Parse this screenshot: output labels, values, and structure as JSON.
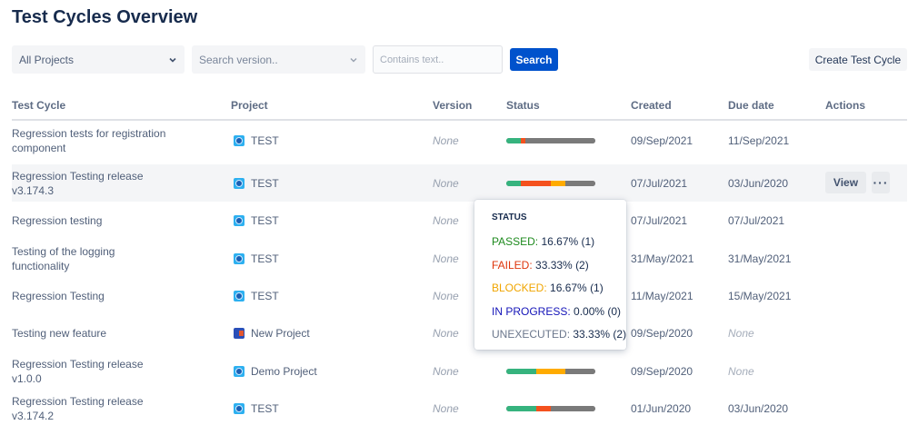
{
  "page": {
    "title": "Test Cycles Overview"
  },
  "filters": {
    "project_select": "All Projects",
    "version_select_placeholder": "Search version..",
    "text_placeholder": "Contains text..",
    "search_label": "Search",
    "create_label": "Create Test Cycle"
  },
  "table": {
    "headers": {
      "test_cycle": "Test Cycle",
      "project": "Project",
      "version": "Version",
      "status": "Status",
      "created": "Created",
      "due_date": "Due date",
      "actions": "Actions"
    },
    "rows": [
      {
        "name": "Regression tests for registration component",
        "project": "TEST",
        "project_icon": "blue",
        "version": "None",
        "status": [
          {
            "label": "PASSED",
            "percent": 16.67,
            "color": "#36b37e"
          },
          {
            "label": "FAILED",
            "percent": 5,
            "color": "#f4511e"
          },
          {
            "label": "UNEXECUTED",
            "percent": 78.33,
            "color": "#7a7a7a"
          }
        ],
        "created": "09/Sep/2021",
        "due": "11/Sep/2021",
        "due_none": false
      },
      {
        "name": "Regression Testing release v3.174.3",
        "project": "TEST",
        "project_icon": "blue",
        "version": "None",
        "status": [
          {
            "label": "PASSED",
            "percent": 16.67,
            "color": "#36b37e"
          },
          {
            "label": "FAILED",
            "percent": 33.33,
            "color": "#f4511e"
          },
          {
            "label": "BLOCKED",
            "percent": 16.67,
            "color": "#ffab00"
          },
          {
            "label": "UNEXECUTED",
            "percent": 33.33,
            "color": "#7a7a7a"
          }
        ],
        "created": "07/Jul/2021",
        "due": "03/Jun/2020",
        "due_none": false,
        "hover": true,
        "view_label": "View",
        "more_label": "···"
      },
      {
        "name": "Regression testing",
        "project": "TEST",
        "project_icon": "blue",
        "version": "None",
        "status": [],
        "created": "07/Jul/2021",
        "due": "07/Jul/2021",
        "due_none": false
      },
      {
        "name": "Testing of the logging functionality",
        "project": "TEST",
        "project_icon": "blue",
        "version": "None",
        "status": [],
        "created": "31/May/2021",
        "due": "31/May/2021",
        "due_none": false
      },
      {
        "name": "Regression Testing",
        "project": "TEST",
        "project_icon": "blue",
        "version": "None",
        "status": [],
        "created": "11/May/2021",
        "due": "15/May/2021",
        "due_none": false
      },
      {
        "name": "Testing new feature",
        "project": "New Project",
        "project_icon": "new",
        "version": "None",
        "status": [],
        "created": "09/Sep/2020",
        "due": "None",
        "due_none": true
      },
      {
        "name": "Regression Testing release v1.0.0",
        "project": "Demo Project",
        "project_icon": "blue",
        "version": "None",
        "status": [
          {
            "label": "PASSED",
            "percent": 33.33,
            "color": "#36b37e"
          },
          {
            "label": "BLOCKED",
            "percent": 33.33,
            "color": "#ffab00"
          },
          {
            "label": "UNEXECUTED",
            "percent": 33.34,
            "color": "#7a7a7a"
          }
        ],
        "created": "09/Sep/2020",
        "due": "None",
        "due_none": true
      },
      {
        "name": "Regression Testing release v3.174.2",
        "project": "TEST",
        "project_icon": "blue",
        "version": "None",
        "status": [
          {
            "label": "PASSED",
            "percent": 33.33,
            "color": "#36b37e"
          },
          {
            "label": "FAILED",
            "percent": 16.67,
            "color": "#f4511e"
          },
          {
            "label": "UNEXECUTED",
            "percent": 50,
            "color": "#7a7a7a"
          }
        ],
        "created": "01/Jun/2020",
        "due": "03/Jun/2020",
        "due_none": false
      }
    ]
  },
  "tooltip": {
    "title": "STATUS",
    "lines": [
      {
        "label": "PASSED",
        "value": "16.67% (1)",
        "color": "#1e8a1e"
      },
      {
        "label": "FAILED",
        "value": "33.33% (2)",
        "color": "#de350b"
      },
      {
        "label": "BLOCKED",
        "value": "16.67% (1)",
        "color": "#f0a500"
      },
      {
        "label": "IN PROGRESS",
        "value": "0.00% (0)",
        "color": "#1414b8"
      },
      {
        "label": "UNEXECUTED",
        "value": "33.33% (2)",
        "color": "#6b778c"
      }
    ]
  }
}
